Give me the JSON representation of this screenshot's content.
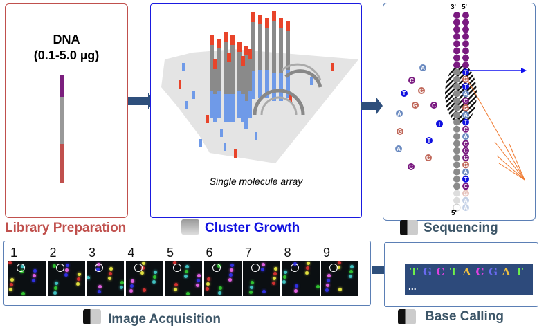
{
  "library": {
    "title": "DNA",
    "amount": "(0.1-5.0 µg)",
    "label": "Library Preparation",
    "color": "#c0504d"
  },
  "cluster": {
    "caption": "Single molecule array",
    "label": "Cluster Growth",
    "color": "#1010e0"
  },
  "sequencing": {
    "label": "Sequencing",
    "end_top_left": "3'",
    "end_top_right": "5'",
    "end_bottom": "5'",
    "strand_bases": [
      "T",
      "G",
      "T",
      "A",
      "C",
      "G",
      "A",
      "T",
      "C",
      "A",
      "C",
      "C",
      "C",
      "G",
      "A",
      "T",
      "C",
      "G",
      "A",
      "A"
    ],
    "free_nucleotides": [
      "A",
      "C",
      "T",
      "G",
      "G",
      "C",
      "A",
      "G",
      "T",
      "A",
      "G",
      "C",
      "T"
    ]
  },
  "acquisition": {
    "label": "Image Acquisition",
    "frames": [
      "1",
      "2",
      "3",
      "4",
      "5",
      "6",
      "7",
      "8",
      "9"
    ]
  },
  "base_calling": {
    "label": "Base Calling",
    "bases": [
      "T",
      "G",
      "C",
      "T",
      "A",
      "C",
      "G",
      "A",
      "T"
    ],
    "ellipsis": "...",
    "base_colors": {
      "T": "#6ef04a",
      "G": "#6a6af0",
      "C": "#e040e0",
      "A": "#f0c040"
    }
  },
  "label_color": "#3d5668"
}
